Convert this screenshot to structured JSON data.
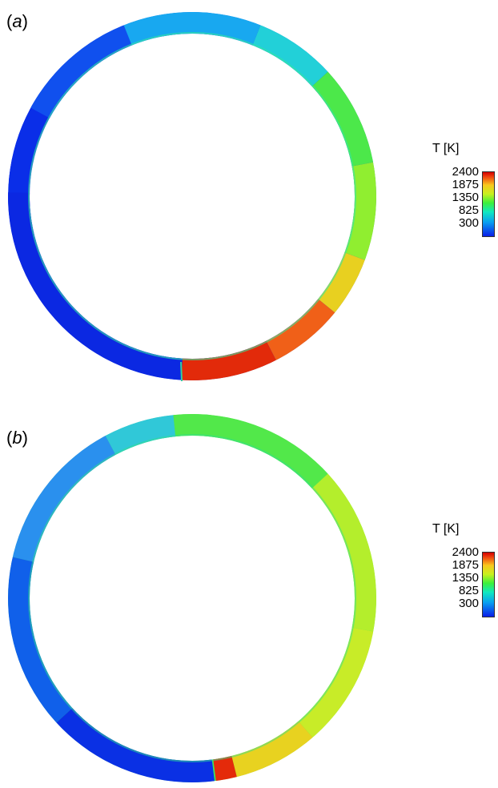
{
  "panels": [
    {
      "label_open": "(",
      "label_letter": "a",
      "label_close": ")",
      "legend": {
        "title": "T [K]",
        "ticks": [
          "2400",
          "1875",
          "1350",
          "825",
          "300"
        ]
      }
    },
    {
      "label_open": "(",
      "label_letter": "b",
      "label_close": ")",
      "legend": {
        "title": "T [K]",
        "ticks": [
          "2400",
          "1875",
          "1350",
          "825",
          "300"
        ]
      }
    }
  ],
  "colormap": {
    "min": 300,
    "max": 2400,
    "stops": [
      "#0a1ee8",
      "#0aa0f0",
      "#10e8c0",
      "#3cf03c",
      "#c8f01e",
      "#f8c81e",
      "#f04a10",
      "#d40000"
    ]
  }
}
